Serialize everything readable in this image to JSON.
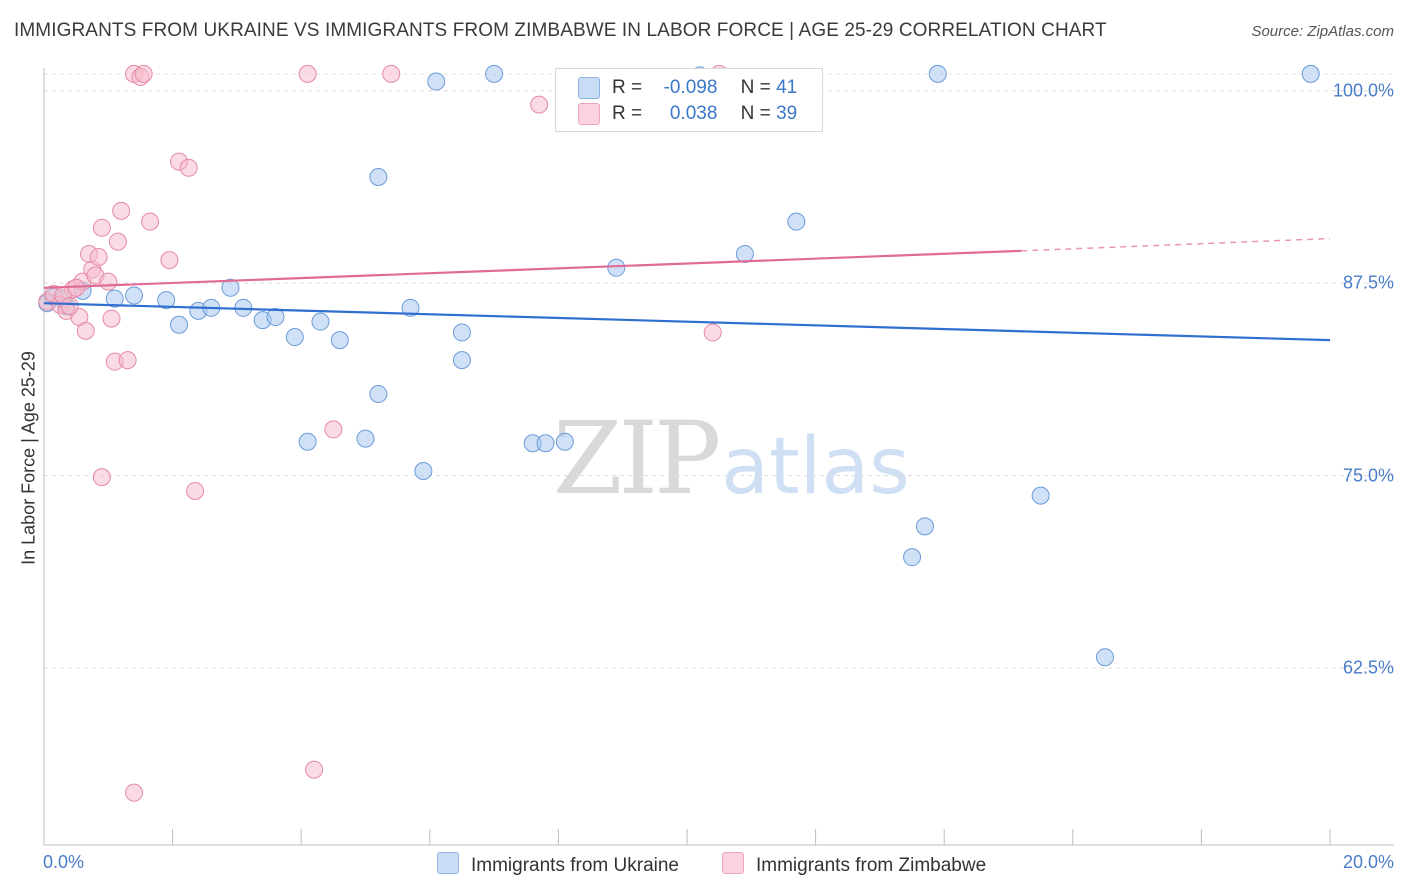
{
  "header": {
    "title": "IMMIGRANTS FROM UKRAINE VS IMMIGRANTS FROM ZIMBABWE IN LABOR FORCE | AGE 25-29 CORRELATION CHART",
    "source": "Source: ZipAtlas.com"
  },
  "watermark": {
    "zip": "ZIP",
    "atlas": "atlas"
  },
  "legend": {
    "r_label": "R =",
    "n_label": "N =",
    "rows": [
      {
        "r": "-0.098",
        "n": "41",
        "color": "#a9c8f0"
      },
      {
        "r": "0.038",
        "n": "39",
        "color": "#f6bccc"
      }
    ]
  },
  "chart_data": {
    "type": "scatter",
    "title": "IMMIGRANTS FROM UKRAINE VS IMMIGRANTS FROM ZIMBABWE IN LABOR FORCE | AGE 25-29 CORRELATION CHART",
    "xlabel": "",
    "ylabel": "In Labor Force | Age 25-29",
    "xlim": [
      0,
      20
    ],
    "ylim": [
      51,
      102
    ],
    "x_tick_labels": [
      "0.0%",
      "20.0%"
    ],
    "y_ticks": [
      {
        "value": 100,
        "label": "100.0%"
      },
      {
        "value": 87.5,
        "label": "87.5%"
      },
      {
        "value": 75,
        "label": "75.0%"
      },
      {
        "value": 62.5,
        "label": "62.5%"
      }
    ],
    "grid": true,
    "series": [
      {
        "name": "Immigrants from Ukraine",
        "color": "#a9c8f0",
        "stroke": "#6b9bd8",
        "trend": {
          "x": [
            0,
            20
          ],
          "y": [
            86.2,
            83.8
          ],
          "color": "#2f6fcf"
        },
        "points": [
          [
            0.05,
            86.2
          ],
          [
            0.15,
            86.6
          ],
          [
            0.35,
            86.0
          ],
          [
            0.6,
            87.0
          ],
          [
            1.1,
            86.5
          ],
          [
            1.4,
            86.7
          ],
          [
            1.9,
            86.4
          ],
          [
            2.1,
            84.8
          ],
          [
            2.4,
            85.7
          ],
          [
            2.6,
            85.9
          ],
          [
            2.9,
            87.2
          ],
          [
            3.1,
            85.9
          ],
          [
            3.4,
            85.1
          ],
          [
            3.6,
            85.3
          ],
          [
            3.9,
            84.0
          ],
          [
            4.3,
            85.0
          ],
          [
            4.6,
            83.8
          ],
          [
            5.2,
            94.4
          ],
          [
            5.2,
            80.3
          ],
          [
            5.0,
            77.4
          ],
          [
            4.1,
            77.2
          ],
          [
            5.7,
            85.9
          ],
          [
            5.9,
            75.3
          ],
          [
            6.1,
            100.6
          ],
          [
            6.5,
            84.3
          ],
          [
            6.5,
            82.5
          ],
          [
            7.0,
            101.1
          ],
          [
            7.6,
            77.1
          ],
          [
            7.8,
            77.1
          ],
          [
            8.1,
            77.2
          ],
          [
            8.9,
            88.5
          ],
          [
            10.2,
            101.0
          ],
          [
            10.9,
            89.4
          ],
          [
            11.7,
            91.5
          ],
          [
            13.9,
            101.1
          ],
          [
            13.7,
            71.7
          ],
          [
            13.5,
            69.7
          ],
          [
            15.5,
            73.7
          ],
          [
            16.5,
            63.2
          ],
          [
            19.7,
            101.1
          ],
          [
            0.3,
            86.5
          ]
        ]
      },
      {
        "name": "Immigrants from Zimbabwe",
        "color": "#f6bccc",
        "stroke": "#e58aa6",
        "trend": {
          "x": [
            0,
            15.2
          ],
          "y": [
            87.2,
            89.6
          ],
          "dash_x": [
            15.2,
            20
          ],
          "dash_y": [
            89.6,
            90.4
          ],
          "color": "#e06b93"
        },
        "points": [
          [
            0.05,
            86.3
          ],
          [
            0.15,
            86.8
          ],
          [
            0.25,
            86.1
          ],
          [
            0.35,
            85.7
          ],
          [
            0.45,
            87.1
          ],
          [
            0.55,
            85.3
          ],
          [
            0.6,
            87.6
          ],
          [
            0.65,
            84.4
          ],
          [
            0.75,
            88.4
          ],
          [
            0.7,
            89.4
          ],
          [
            0.8,
            88.0
          ],
          [
            0.85,
            89.2
          ],
          [
            0.9,
            91.1
          ],
          [
            1.0,
            87.6
          ],
          [
            1.05,
            85.2
          ],
          [
            1.1,
            82.4
          ],
          [
            1.15,
            90.2
          ],
          [
            1.2,
            92.2
          ],
          [
            1.3,
            82.5
          ],
          [
            1.4,
            101.1
          ],
          [
            1.5,
            100.9
          ],
          [
            1.55,
            101.1
          ],
          [
            1.65,
            91.5
          ],
          [
            1.95,
            89.0
          ],
          [
            2.1,
            95.4
          ],
          [
            2.25,
            95.0
          ],
          [
            2.35,
            74.0
          ],
          [
            0.9,
            74.9
          ],
          [
            1.4,
            54.4
          ],
          [
            4.1,
            101.1
          ],
          [
            5.4,
            101.1
          ],
          [
            4.5,
            78.0
          ],
          [
            4.2,
            55.9
          ],
          [
            7.7,
            99.1
          ],
          [
            10.5,
            101.1
          ],
          [
            10.4,
            84.3
          ],
          [
            0.3,
            86.7
          ],
          [
            0.5,
            87.2
          ],
          [
            0.4,
            86.0
          ]
        ]
      }
    ]
  }
}
